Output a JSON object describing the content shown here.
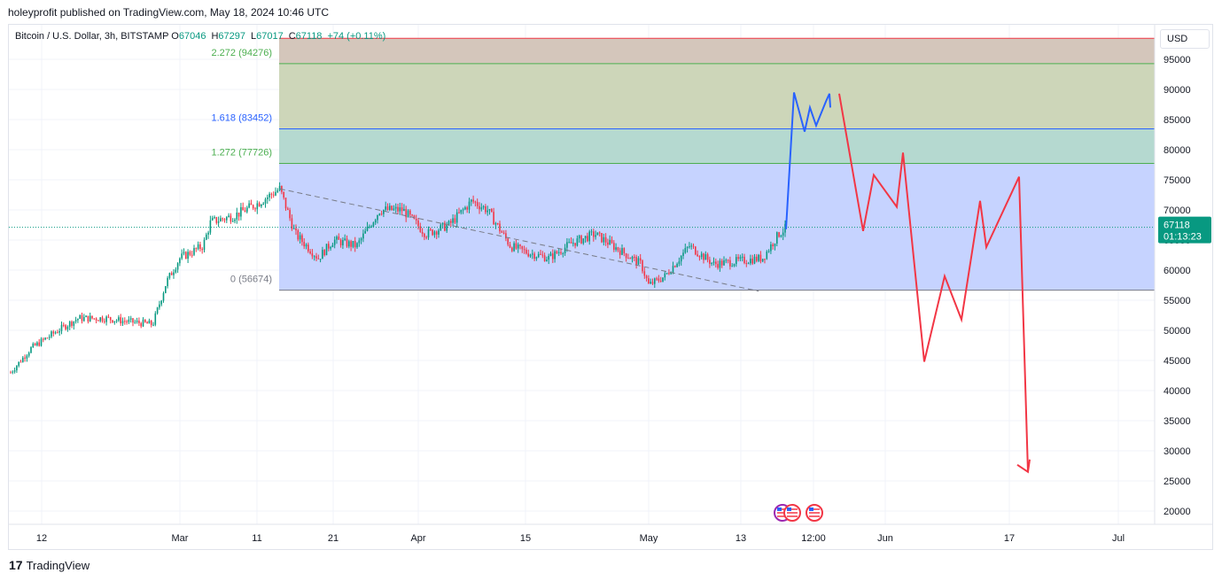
{
  "header": {
    "publisher": "holeyprofit published on TradingView.com, May 18, 2024 10:46 UTC"
  },
  "symbol": {
    "name": "Bitcoin / U.S. Dollar, 3h, BITSTAMP",
    "open_label": "O",
    "open": "67046",
    "high_label": "H",
    "high": "67297",
    "low_label": "L",
    "low": "67017",
    "close_label": "C",
    "close": "67118",
    "change": "+74 (+0.11%)"
  },
  "currency": "USD",
  "price_badge": {
    "price": "67118",
    "countdown": "01:13:23",
    "color": "#089981"
  },
  "footer": {
    "brand": "TradingView",
    "logo": "17"
  },
  "colors": {
    "up": "#089981",
    "down": "#f23645",
    "projection_up": "#2962ff",
    "projection_down": "#f23645",
    "fib_0": "#c6d3ff",
    "fib_1272": "#b5d9d0",
    "fib_1618": "#cdd6b9",
    "fib_2272": "#d4c6bb"
  },
  "chart_data": {
    "type": "candlestick",
    "symbol": "BTCUSD",
    "exchange": "BITSTAMP",
    "interval": "3h",
    "y_axis": {
      "ticks": [
        20000,
        25000,
        30000,
        35000,
        40000,
        45000,
        50000,
        55000,
        60000,
        65000,
        70000,
        75000,
        80000,
        85000,
        90000,
        95000
      ],
      "range": [
        18000,
        99000
      ]
    },
    "x_axis": {
      "ticks": [
        "12",
        "Mar",
        "11",
        "21",
        "Apr",
        "15",
        "May",
        "13",
        "12:00",
        "Jun",
        "17",
        "Jul"
      ]
    },
    "price_series": {
      "name": "BTCUSD",
      "dates": [
        "2024-02-05",
        "2024-02-08",
        "2024-02-12",
        "2024-02-15",
        "2024-02-19",
        "2024-02-22",
        "2024-02-26",
        "2024-02-28",
        "2024-03-01",
        "2024-03-04",
        "2024-03-05",
        "2024-03-08",
        "2024-03-11",
        "2024-03-14",
        "2024-03-16",
        "2024-03-19",
        "2024-03-21",
        "2024-03-24",
        "2024-03-27",
        "2024-03-30",
        "2024-04-02",
        "2024-04-05",
        "2024-04-08",
        "2024-04-10",
        "2024-04-13",
        "2024-04-15",
        "2024-04-18",
        "2024-04-21",
        "2024-04-24",
        "2024-04-27",
        "2024-04-30",
        "2024-05-01",
        "2024-05-03",
        "2024-05-06",
        "2024-05-09",
        "2024-05-12",
        "2024-05-15",
        "2024-05-17",
        "2024-05-18"
      ],
      "values": [
        43000,
        47000,
        50000,
        52000,
        52000,
        51500,
        51000,
        58000,
        62000,
        64000,
        68000,
        69000,
        71000,
        73500,
        66000,
        62000,
        65000,
        64000,
        70000,
        70000,
        66000,
        67500,
        71500,
        70000,
        64000,
        63000,
        62000,
        64500,
        66000,
        63500,
        61000,
        57500,
        59000,
        64000,
        61000,
        61500,
        62000,
        66000,
        67118
      ]
    },
    "fibonacci_extension": {
      "levels": [
        {
          "ratio": "0",
          "price": 56674,
          "label": "0 (56674)"
        },
        {
          "ratio": "1.272",
          "price": 77726,
          "label": "1.272 (77726)"
        },
        {
          "ratio": "1.618",
          "price": 83452,
          "label": "1.618 (83452)"
        },
        {
          "ratio": "2.272",
          "price": 94276,
          "label": "2.272 (94276)"
        }
      ],
      "top_price": 98500
    },
    "trendline": {
      "from": {
        "date": "2024-03-14",
        "price": 73500
      },
      "to": {
        "date": "2024-05-08",
        "price": 56500
      },
      "style": "dashed"
    },
    "projection_up": {
      "color": "#2962ff",
      "points": [
        [
          0,
          66800
        ],
        [
          1,
          89500
        ],
        [
          2,
          83000
        ],
        [
          3,
          87000
        ],
        [
          4,
          84000
        ],
        [
          5,
          88000
        ],
        [
          6,
          89300
        ],
        [
          7,
          87000
        ]
      ]
    },
    "projection_down": {
      "color": "#f23645",
      "points": [
        [
          7,
          89300
        ],
        [
          8,
          66500
        ],
        [
          9,
          75800
        ],
        [
          10,
          70500
        ],
        [
          11,
          79500
        ],
        [
          12,
          44800
        ],
        [
          13,
          59000
        ],
        [
          14,
          51800
        ],
        [
          15,
          71500
        ],
        [
          16,
          63800
        ],
        [
          17,
          75500
        ],
        [
          18,
          26500
        ],
        [
          19,
          28200
        ]
      ]
    },
    "last_price": 67118
  }
}
